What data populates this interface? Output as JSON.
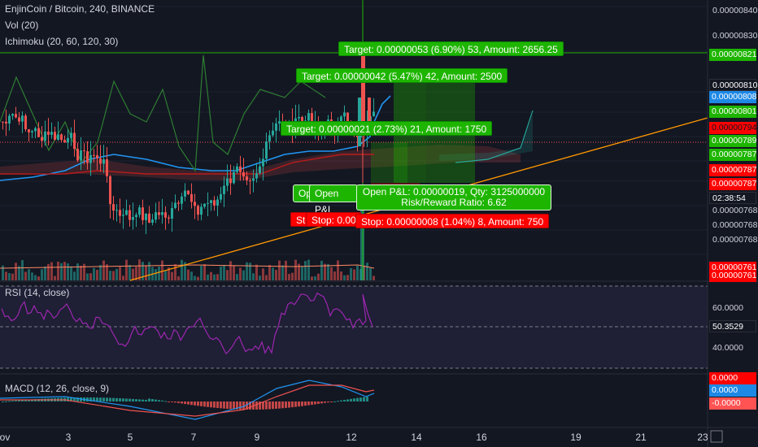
{
  "header": {
    "symbol_line": "EnjinCoin / Bitcoin, 240, BINANCE",
    "vol_label": "Vol (20)",
    "ichimoku_label": "Ichimoku (20, 60, 120, 30)"
  },
  "price_axis": {
    "gray_labels": [
      "0.00000840",
      "0.00000830",
      "0.00000768",
      "0.00000768",
      "0.00000768"
    ],
    "tags": [
      {
        "text": "0.00000821",
        "kind": "pill",
        "color": "#1eb500",
        "text_color": "#ffffff"
      },
      {
        "text": "0.00000810",
        "kind": "pill",
        "color": "#131722",
        "text_color": "#ffffff"
      },
      {
        "text": "0.00000808",
        "kind": "pill",
        "color": "#1e88e5",
        "text_color": "#ffffff"
      },
      {
        "text": "0.00000801",
        "kind": "pill",
        "color": "#1eb500",
        "text_color": "#ffffff"
      },
      {
        "text": "0.00000794",
        "kind": "pill",
        "color": "#ff0000",
        "text_color": "#131722"
      },
      {
        "text": "0.00000789",
        "kind": "pill",
        "color": "#1eb500",
        "text_color": "#ffffff"
      },
      {
        "text": "0.00000787",
        "kind": "pill",
        "color": "#1eb500",
        "text_color": "#ffffff"
      },
      {
        "text": "0.00000787",
        "kind": "pill",
        "color": "#ff0000",
        "text_color": "#ffffff"
      },
      {
        "text": "0.00000787",
        "kind": "pill",
        "color": "#ff0000",
        "text_color": "#ffffff"
      },
      {
        "text": "02:38:54",
        "kind": "pill",
        "color": "#131722",
        "text_color": "#ffffff"
      },
      {
        "text": "0.00000761",
        "kind": "pill",
        "color": "#ff0000",
        "text_color": "#ffffff"
      },
      {
        "text": "0.00000761",
        "kind": "pill",
        "color": "#ff0000",
        "text_color": "#ffffff"
      }
    ]
  },
  "positions": {
    "target_top": "Target: 0.00000053 (6.90%) 53, Amount: 2656.25",
    "target_mid": "Target: 0.00000042 (5.47%) 42, Amount: 2500",
    "target_low": "Target: 0.00000021 (2.73%) 21, Amount: 1750",
    "open_short_1": "Ope",
    "open_short_2": "Open P&L",
    "pnl_line1": "Open P&L: 0.00000019, Qty: 3125000000",
    "pnl_line2": "Risk/Reward Ratio: 6.62",
    "stop_short_1": "Sto",
    "stop_short_2": "Stop: 0.00",
    "stop_main": "Stop: 0.00000008 (1.04%) 8, Amount: 750"
  },
  "rsi": {
    "label": "RSI (14, close)",
    "axis_labels": [
      "60.0000",
      "40.0000"
    ],
    "current": "50.3529",
    "current_color": "#ffffff"
  },
  "macd": {
    "label": "MACD (12, 26, close, 9)",
    "tags": [
      {
        "text": "0.0000",
        "color": "#ff0000"
      },
      {
        "text": "0.0000",
        "color": "#1e88e5"
      },
      {
        "text": "-0.0000",
        "color": "#ff5252"
      }
    ]
  },
  "time_axis": {
    "ticks": [
      "ov",
      "3",
      "5",
      "7",
      "9",
      "12",
      "14",
      "16",
      "19",
      "21",
      "23"
    ]
  },
  "colors": {
    "background": "#131722",
    "up": "#26a69a",
    "down": "#ef5350",
    "target_green": "#1eb500",
    "stop_red": "#ff0000",
    "trendline": "#ff9800",
    "rsi_line": "#9c27b0"
  }
}
